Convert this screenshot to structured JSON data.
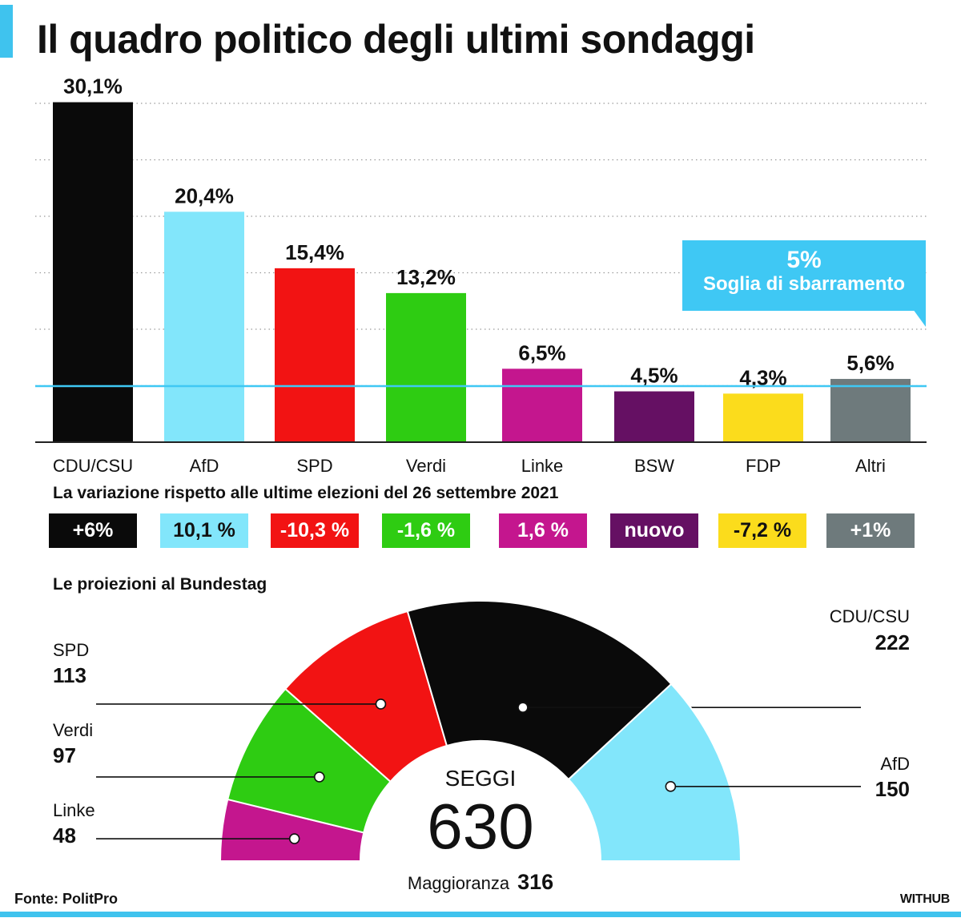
{
  "title": "Il quadro politico degli ultimi sondaggi",
  "colors": {
    "accent": "#3fc3ee",
    "CDU/CSU": "#0a0a0a",
    "AfD": "#82e6fb",
    "SPD": "#f21313",
    "Verdi": "#2ecc12",
    "Linke": "#c4168e",
    "BSW": "#651063",
    "FDP": "#fbdc1c",
    "Altri": "#6e7a7c"
  },
  "chart_data": [
    {
      "type": "bar",
      "categories": [
        "CDU/CSU",
        "AfD",
        "SPD",
        "Verdi",
        "Linke",
        "BSW",
        "FDP",
        "Altri"
      ],
      "values": [
        30.1,
        20.4,
        15.4,
        13.2,
        6.5,
        4.5,
        4.3,
        5.6
      ],
      "data_labels": [
        "30,1%",
        "20,4%",
        "15,4%",
        "13,2%",
        "6,5%",
        "4,5%",
        "4,3%",
        "5,6%"
      ],
      "ylim": [
        0,
        30
      ],
      "grid": true,
      "threshold": {
        "value": 5,
        "label_value": "5%",
        "label": "Soglia di sbarramento"
      }
    },
    {
      "type": "pie",
      "style": "semicircle",
      "categories": [
        "Linke",
        "Verdi",
        "SPD",
        "CDU/CSU",
        "AfD"
      ],
      "values": [
        48,
        97,
        113,
        222,
        150
      ],
      "total": 630
    }
  ],
  "variation": {
    "title": "La variazione rispetto alle ultime elezioni del 26 settembre 2021",
    "items": [
      {
        "party": "CDU/CSU",
        "label": "+6%",
        "color": "#0a0a0a",
        "text_color": "#ffffff"
      },
      {
        "party": "AfD",
        "label": "10,1 %",
        "color": "#82e6fb",
        "text_color": "#111111"
      },
      {
        "party": "SPD",
        "label": "-10,3 %",
        "color": "#f21313",
        "text_color": "#ffffff"
      },
      {
        "party": "Verdi",
        "label": "-1,6 %",
        "color": "#2ecc12",
        "text_color": "#ffffff"
      },
      {
        "party": "Linke",
        "label": "1,6 %",
        "color": "#c4168e",
        "text_color": "#ffffff"
      },
      {
        "party": "BSW",
        "label": "nuovo",
        "color": "#651063",
        "text_color": "#ffffff"
      },
      {
        "party": "FDP",
        "label": "-7,2 %",
        "color": "#fbdc1c",
        "text_color": "#111111"
      },
      {
        "party": "Altri",
        "label": "+1%",
        "color": "#6e7a7c",
        "text_color": "#ffffff"
      }
    ]
  },
  "projection": {
    "title": "Le proiezioni al Bundestag",
    "seggi_label": "SEGGI",
    "total": "630",
    "majority_label": "Maggioranza",
    "majority_value": "316",
    "parties": {
      "spd": {
        "name": "SPD",
        "seats": "113"
      },
      "verdi": {
        "name": "Verdi",
        "seats": "97"
      },
      "linke": {
        "name": "Linke",
        "seats": "48"
      },
      "cdu": {
        "name": "CDU/CSU",
        "seats": "222"
      },
      "afd": {
        "name": "AfD",
        "seats": "150"
      }
    }
  },
  "footer": {
    "source": "Fonte: PolitPro",
    "brand": "WITHUB"
  }
}
